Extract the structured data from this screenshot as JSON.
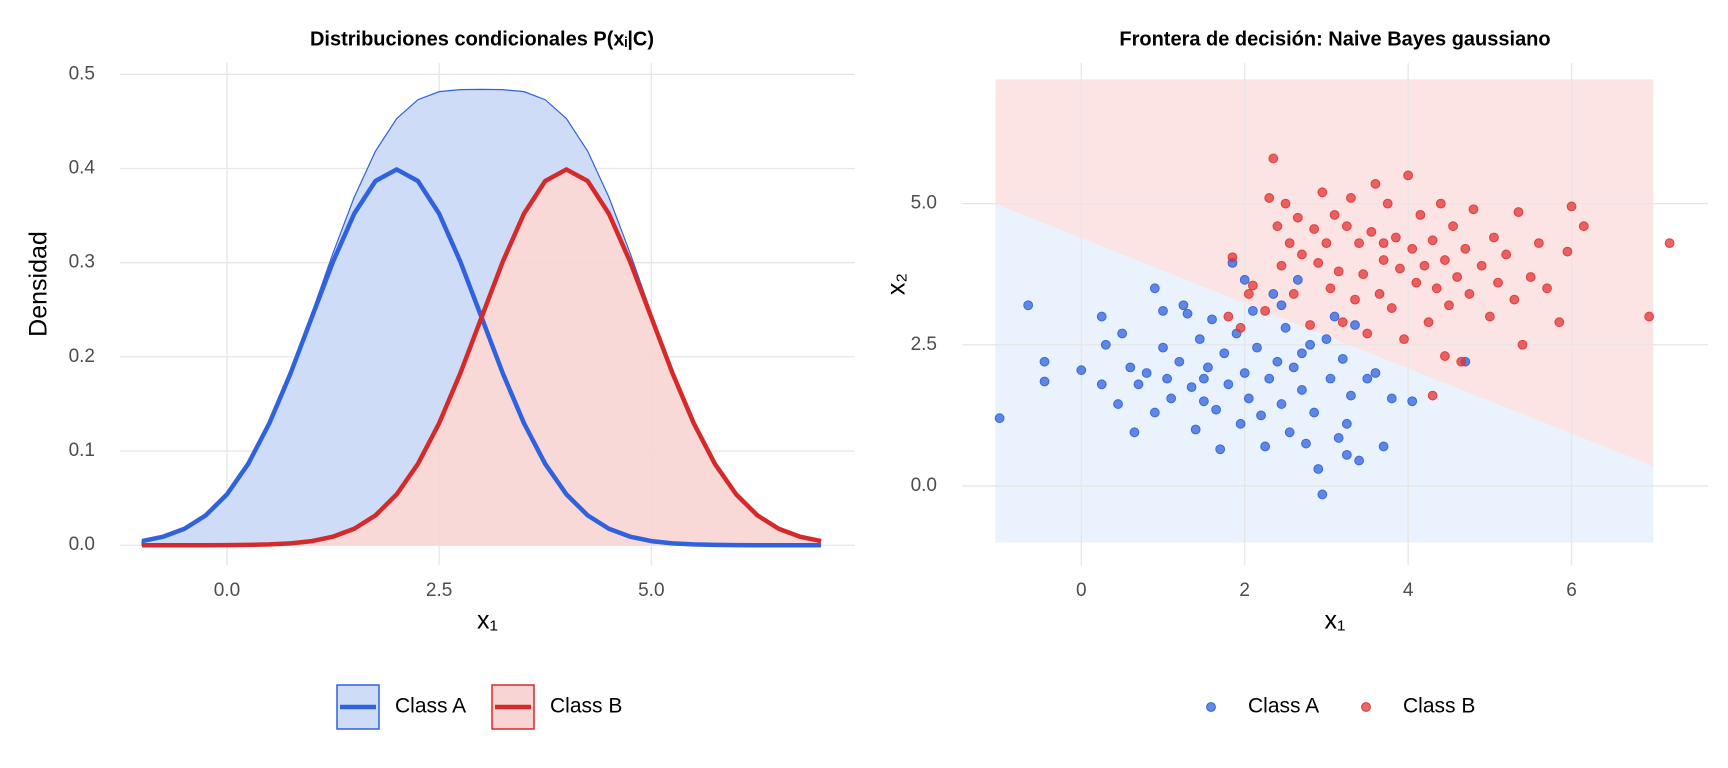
{
  "chart_data": [
    {
      "type": "line",
      "title": "Distribuciones condicionales P(xᵢ|C)",
      "xlabel": "x₁",
      "ylabel": "Densidad",
      "x": [
        -1,
        -0.75,
        -0.5,
        -0.25,
        0,
        0.25,
        0.5,
        0.75,
        1,
        1.25,
        1.5,
        1.75,
        2,
        2.25,
        2.5,
        2.75,
        3,
        3.25,
        3.5,
        3.75,
        4,
        4.25,
        4.5,
        4.75,
        5,
        5.25,
        5.5,
        5.75,
        6,
        6.25,
        6.5,
        6.75,
        7
      ],
      "series": [
        {
          "name": "Class A",
          "color": "#2f62dc",
          "fill": "#cfdcf8",
          "values": [
            0.0044,
            0.0091,
            0.0175,
            0.0317,
            0.054,
            0.0863,
            0.1295,
            0.1826,
            0.242,
            0.3011,
            0.3521,
            0.3867,
            0.399,
            0.3867,
            0.3521,
            0.3011,
            0.242,
            0.1826,
            0.1295,
            0.0863,
            0.054,
            0.0317,
            0.0175,
            0.0091,
            0.0044,
            0.002,
            0.0009,
            0.0004,
            0.0001,
            0,
            0,
            0,
            0
          ]
        },
        {
          "name": "Class B",
          "color": "#d62a2a",
          "fill": "#f8d4d4",
          "values": [
            0,
            0,
            0,
            0,
            0.0001,
            0.0004,
            0.0009,
            0.002,
            0.0044,
            0.0091,
            0.0175,
            0.0317,
            0.054,
            0.0863,
            0.1295,
            0.1826,
            0.242,
            0.3011,
            0.3521,
            0.3867,
            0.399,
            0.3867,
            0.3521,
            0.3011,
            0.242,
            0.1826,
            0.1295,
            0.0863,
            0.054,
            0.0317,
            0.0175,
            0.0091,
            0.0044
          ]
        }
      ],
      "stacked_fill": true,
      "xlim": [
        -1.26,
        7.4
      ],
      "ylim": [
        -0.021,
        0.512
      ],
      "xticks": [
        {
          "value": 0,
          "label": "0.0"
        },
        2.5,
        {
          "value": 5,
          "label": "5.0"
        }
      ],
      "yticks": [
        {
          "value": 0,
          "label": "0.0"
        },
        0.1,
        0.2,
        0.3,
        0.4,
        0.5
      ],
      "grid": true,
      "legend": "bottom"
    },
    {
      "type": "scatter",
      "title": "Frontera de decisión: Naive Bayes gaussiano",
      "xlabel": "x₁",
      "ylabel": "x₂",
      "region": {
        "x": [
          -1.05,
          7.0
        ],
        "y": [
          -1.0,
          7.2
        ],
        "boundary_y": [
          5.0,
          0.35
        ],
        "upper_color": "#fde4e4",
        "lower_color": "#eaf2fd"
      },
      "series": [
        {
          "name": "Class A",
          "color": "#2f62dc",
          "x": [
            -1.0,
            -0.65,
            -0.45,
            -0.45,
            0.0,
            0.25,
            0.25,
            0.3,
            0.45,
            0.5,
            0.6,
            0.65,
            0.7,
            0.8,
            0.9,
            1.0,
            1.0,
            1.05,
            1.1,
            1.2,
            1.3,
            1.35,
            1.4,
            1.45,
            1.5,
            1.55,
            1.6,
            1.65,
            1.7,
            1.75,
            1.8,
            1.85,
            1.9,
            1.95,
            2.0,
            2.05,
            2.1,
            2.15,
            2.2,
            2.25,
            2.3,
            2.35,
            2.4,
            2.45,
            2.5,
            2.55,
            2.6,
            2.65,
            2.7,
            2.75,
            2.8,
            2.85,
            2.9,
            2.95,
            3.0,
            3.05,
            3.1,
            3.15,
            3.2,
            3.25,
            3.3,
            3.35,
            3.4,
            3.5,
            3.6,
            3.7,
            3.8,
            4.05,
            4.7,
            3.25,
            1.25,
            0.9,
            2.0,
            2.45,
            1.5,
            2.7
          ],
          "y": [
            1.2,
            3.2,
            2.2,
            1.85,
            2.05,
            1.8,
            3.0,
            2.5,
            1.45,
            2.7,
            2.1,
            0.95,
            1.8,
            2.0,
            1.3,
            2.45,
            3.1,
            1.9,
            1.55,
            2.2,
            3.05,
            1.75,
            1.0,
            2.6,
            1.5,
            2.1,
            2.95,
            1.35,
            0.65,
            2.35,
            1.8,
            3.95,
            2.7,
            1.1,
            2.0,
            1.55,
            3.1,
            2.45,
            1.25,
            0.7,
            1.9,
            3.4,
            2.2,
            1.45,
            2.8,
            0.95,
            2.1,
            3.65,
            1.7,
            0.75,
            2.5,
            1.3,
            0.3,
            -0.15,
            2.6,
            1.9,
            3.0,
            0.85,
            2.25,
            0.55,
            1.6,
            2.85,
            0.45,
            1.9,
            2.0,
            0.7,
            1.55,
            1.5,
            2.2,
            1.1,
            3.2,
            3.5,
            3.65,
            3.2,
            1.9,
            2.35
          ]
        },
        {
          "name": "Class B",
          "color": "#e03434",
          "x": [
            1.8,
            1.95,
            2.05,
            2.1,
            1.85,
            2.25,
            2.3,
            2.35,
            2.4,
            2.45,
            2.5,
            2.55,
            2.6,
            2.65,
            2.7,
            2.8,
            2.85,
            2.9,
            2.95,
            3.0,
            3.05,
            3.1,
            3.15,
            3.2,
            3.25,
            3.3,
            3.35,
            3.4,
            3.45,
            3.5,
            3.55,
            3.6,
            3.65,
            3.7,
            3.75,
            3.8,
            3.85,
            3.9,
            3.95,
            4.0,
            4.05,
            4.1,
            4.15,
            4.2,
            4.25,
            4.3,
            4.3,
            4.35,
            4.4,
            4.45,
            4.5,
            4.55,
            4.6,
            4.65,
            4.7,
            4.75,
            4.8,
            4.9,
            5.0,
            5.05,
            5.1,
            5.2,
            5.3,
            5.35,
            5.4,
            5.5,
            5.6,
            5.7,
            5.85,
            5.95,
            6.0,
            6.15,
            6.95,
            7.2,
            4.45,
            3.7
          ],
          "y": [
            3.0,
            2.8,
            3.4,
            3.55,
            4.05,
            3.1,
            5.1,
            5.8,
            4.6,
            3.9,
            5.0,
            4.3,
            3.4,
            4.75,
            4.1,
            2.85,
            4.55,
            3.95,
            5.2,
            4.3,
            3.5,
            4.8,
            3.8,
            2.9,
            4.6,
            5.1,
            3.3,
            4.3,
            3.75,
            2.7,
            4.5,
            5.35,
            3.4,
            4.0,
            5.0,
            3.15,
            4.4,
            3.85,
            2.6,
            5.5,
            4.2,
            3.6,
            4.8,
            3.9,
            2.9,
            4.35,
            1.6,
            3.5,
            5.0,
            4.0,
            3.2,
            4.6,
            3.7,
            2.2,
            4.2,
            3.4,
            4.9,
            3.9,
            3.0,
            4.4,
            3.6,
            4.1,
            3.3,
            4.85,
            2.5,
            3.7,
            4.3,
            3.5,
            2.9,
            4.15,
            4.95,
            4.6,
            3.0,
            4.3,
            2.3,
            4.3
          ]
        }
      ],
      "xlim": [
        -1.46,
        7.67
      ],
      "ylim": [
        -1.4,
        7.49
      ],
      "xticks": [
        0,
        2,
        4,
        6
      ],
      "yticks": [
        {
          "value": 0,
          "label": "0.0"
        },
        2.5,
        {
          "value": 5,
          "label": "5.0"
        }
      ],
      "grid": true,
      "legend": "bottom"
    }
  ]
}
